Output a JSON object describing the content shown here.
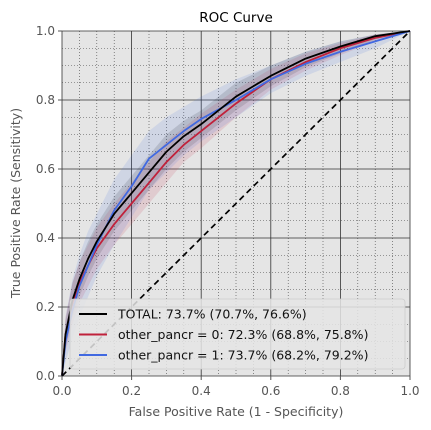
{
  "chart_data": {
    "type": "line",
    "title": "ROC Curve",
    "xlabel": "False Positive Rate (1 - Specificity)",
    "ylabel": "True Positive Rate (Sensitivity)",
    "xlim": [
      0,
      1
    ],
    "ylim": [
      0,
      1
    ],
    "xticks": [
      0.0,
      0.2,
      0.4,
      0.6,
      0.8,
      1.0
    ],
    "yticks": [
      0.0,
      0.2,
      0.4,
      0.6,
      0.8,
      1.0
    ],
    "xtick_labels": [
      "0.0",
      "0.2",
      "0.4",
      "0.6",
      "0.8",
      "1.0"
    ],
    "ytick_labels": [
      "0.0",
      "0.2",
      "0.4",
      "0.6",
      "0.8",
      "1.0"
    ],
    "grid": true,
    "legend_position": "lower-right",
    "background": "#e5e5e5",
    "diagonal": {
      "x": [
        0,
        1
      ],
      "y": [
        0,
        1
      ],
      "color": "#000000",
      "style": "dashed"
    },
    "series": [
      {
        "name": "TOTAL: 73.7% (70.7%, 76.6%)",
        "color": "#000000",
        "x": [
          0,
          0.01,
          0.03,
          0.05,
          0.075,
          0.1,
          0.15,
          0.2,
          0.25,
          0.3,
          0.35,
          0.4,
          0.5,
          0.6,
          0.7,
          0.8,
          0.9,
          1.0
        ],
        "y": [
          0,
          0.12,
          0.22,
          0.28,
          0.34,
          0.39,
          0.47,
          0.53,
          0.59,
          0.65,
          0.695,
          0.73,
          0.81,
          0.87,
          0.92,
          0.955,
          0.985,
          1.0
        ],
        "band_low": [
          0,
          0.08,
          0.17,
          0.23,
          0.29,
          0.34,
          0.42,
          0.48,
          0.54,
          0.6,
          0.65,
          0.69,
          0.77,
          0.84,
          0.895,
          0.935,
          0.975,
          1.0
        ],
        "band_high": [
          0,
          0.16,
          0.27,
          0.33,
          0.39,
          0.44,
          0.52,
          0.58,
          0.64,
          0.7,
          0.74,
          0.77,
          0.85,
          0.9,
          0.94,
          0.97,
          0.99,
          1.0
        ]
      },
      {
        "name": "other_pancr = 0: 72.3% (68.8%, 75.8%)",
        "color": "#c0213b",
        "x": [
          0,
          0.01,
          0.03,
          0.05,
          0.075,
          0.1,
          0.15,
          0.2,
          0.25,
          0.3,
          0.35,
          0.4,
          0.5,
          0.6,
          0.7,
          0.8,
          0.9,
          1.0
        ],
        "y": [
          0,
          0.12,
          0.21,
          0.27,
          0.32,
          0.37,
          0.44,
          0.5,
          0.56,
          0.62,
          0.67,
          0.71,
          0.79,
          0.86,
          0.91,
          0.95,
          0.98,
          1.0
        ],
        "band_low": [
          0,
          0.07,
          0.15,
          0.21,
          0.26,
          0.31,
          0.38,
          0.44,
          0.5,
          0.56,
          0.62,
          0.66,
          0.75,
          0.83,
          0.885,
          0.93,
          0.97,
          1.0
        ],
        "band_high": [
          0,
          0.17,
          0.27,
          0.33,
          0.38,
          0.43,
          0.5,
          0.56,
          0.62,
          0.68,
          0.72,
          0.76,
          0.83,
          0.89,
          0.935,
          0.965,
          0.99,
          1.0
        ]
      },
      {
        "name": "other_pancr = 1: 73.7% (68.2%, 79.2%)",
        "color": "#4169e1",
        "x": [
          0,
          0.01,
          0.03,
          0.05,
          0.075,
          0.1,
          0.15,
          0.2,
          0.25,
          0.3,
          0.35,
          0.4,
          0.5,
          0.6,
          0.7,
          0.8,
          0.9,
          1.0
        ],
        "y": [
          0,
          0.1,
          0.19,
          0.26,
          0.32,
          0.38,
          0.48,
          0.55,
          0.63,
          0.67,
          0.71,
          0.745,
          0.8,
          0.86,
          0.905,
          0.94,
          0.97,
          1.0
        ],
        "band_low": [
          0,
          0.04,
          0.11,
          0.17,
          0.23,
          0.29,
          0.38,
          0.46,
          0.54,
          0.59,
          0.64,
          0.68,
          0.75,
          0.82,
          0.87,
          0.91,
          0.95,
          1.0
        ],
        "band_high": [
          0,
          0.17,
          0.28,
          0.35,
          0.42,
          0.47,
          0.57,
          0.64,
          0.71,
          0.75,
          0.78,
          0.81,
          0.86,
          0.9,
          0.94,
          0.97,
          0.99,
          1.0
        ]
      }
    ]
  }
}
